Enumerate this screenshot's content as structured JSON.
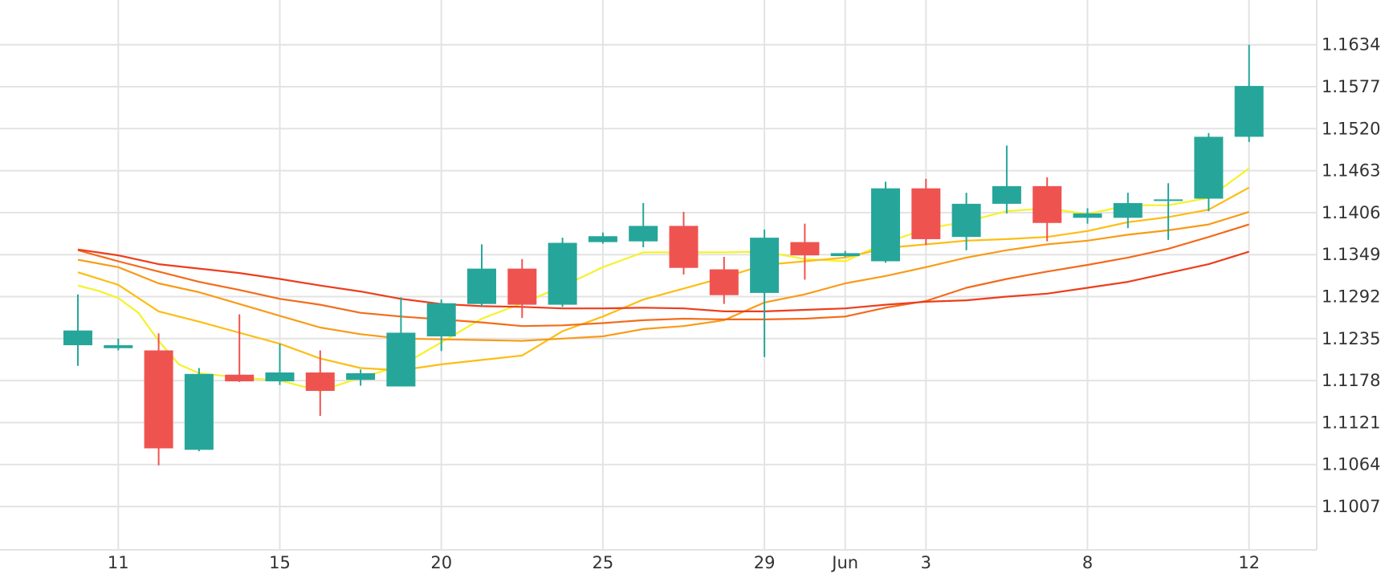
{
  "chart_data": {
    "type": "candlestick",
    "title": "",
    "xlabel": "",
    "ylabel": "",
    "ylim": [
      1.095,
      1.1705
    ],
    "y_ticks": [
      "1.1634",
      "1.1577",
      "1.1520",
      "1.1463",
      "1.1406",
      "1.1349",
      "1.1292",
      "1.1235",
      "1.1178",
      "1.1121",
      "1.1064",
      "1.1007"
    ],
    "x_ticks": [
      {
        "index": 1,
        "label": "11"
      },
      {
        "index": 5,
        "label": "15"
      },
      {
        "index": 9,
        "label": "20"
      },
      {
        "index": 13,
        "label": "25"
      },
      {
        "index": 17,
        "label": "29"
      },
      {
        "index": 19,
        "label": "Jun"
      },
      {
        "index": 21,
        "label": "3"
      },
      {
        "index": 25,
        "label": "8"
      },
      {
        "index": 29,
        "label": "12"
      }
    ],
    "grid": true,
    "colors": {
      "up": "#26a69a",
      "down": "#ef5350",
      "grid": "#e3e3e3",
      "text": "#333333"
    },
    "candles": [
      {
        "index": 0,
        "open": 1.1226,
        "high": 1.1295,
        "low": 1.1198,
        "close": 1.1246
      },
      {
        "index": 1,
        "open": 1.1222,
        "high": 1.1235,
        "low": 1.1219,
        "close": 1.1226
      },
      {
        "index": 2,
        "open": 1.1219,
        "high": 1.1242,
        "low": 1.1063,
        "close": 1.1086
      },
      {
        "index": 3,
        "open": 1.1084,
        "high": 1.1195,
        "low": 1.1082,
        "close": 1.1187
      },
      {
        "index": 4,
        "open": 1.1186,
        "high": 1.1268,
        "low": 1.1176,
        "close": 1.1177
      },
      {
        "index": 5,
        "open": 1.1177,
        "high": 1.1228,
        "low": 1.1172,
        "close": 1.1189
      },
      {
        "index": 6,
        "open": 1.1189,
        "high": 1.1219,
        "low": 1.113,
        "close": 1.1164
      },
      {
        "index": 7,
        "open": 1.1179,
        "high": 1.1193,
        "low": 1.1171,
        "close": 1.1188
      },
      {
        "index": 8,
        "open": 1.117,
        "high": 1.1291,
        "low": 1.117,
        "close": 1.1243
      },
      {
        "index": 9,
        "open": 1.1238,
        "high": 1.1288,
        "low": 1.1218,
        "close": 1.1283
      },
      {
        "index": 10,
        "open": 1.1282,
        "high": 1.1363,
        "low": 1.1279,
        "close": 1.133
      },
      {
        "index": 11,
        "open": 1.133,
        "high": 1.1343,
        "low": 1.1263,
        "close": 1.1281
      },
      {
        "index": 12,
        "open": 1.1281,
        "high": 1.1372,
        "low": 1.1278,
        "close": 1.1365
      },
      {
        "index": 13,
        "open": 1.1366,
        "high": 1.1379,
        "low": 1.1364,
        "close": 1.1374
      },
      {
        "index": 14,
        "open": 1.1367,
        "high": 1.1419,
        "low": 1.1359,
        "close": 1.1388
      },
      {
        "index": 15,
        "open": 1.1388,
        "high": 1.1407,
        "low": 1.1322,
        "close": 1.1331
      },
      {
        "index": 16,
        "open": 1.1329,
        "high": 1.1346,
        "low": 1.1282,
        "close": 1.1294
      },
      {
        "index": 17,
        "open": 1.1297,
        "high": 1.1383,
        "low": 1.121,
        "close": 1.1372
      },
      {
        "index": 18,
        "open": 1.1366,
        "high": 1.1391,
        "low": 1.1315,
        "close": 1.1348
      },
      {
        "index": 19,
        "open": 1.1347,
        "high": 1.1354,
        "low": 1.1346,
        "close": 1.1351
      },
      {
        "index": 20,
        "open": 1.134,
        "high": 1.1448,
        "low": 1.1338,
        "close": 1.1439
      },
      {
        "index": 21,
        "open": 1.1439,
        "high": 1.1452,
        "low": 1.1362,
        "close": 1.137
      },
      {
        "index": 22,
        "open": 1.1373,
        "high": 1.1433,
        "low": 1.1355,
        "close": 1.1418
      },
      {
        "index": 23,
        "open": 1.1418,
        "high": 1.1497,
        "low": 1.1405,
        "close": 1.1442
      },
      {
        "index": 24,
        "open": 1.1442,
        "high": 1.1454,
        "low": 1.1367,
        "close": 1.1392
      },
      {
        "index": 25,
        "open": 1.1399,
        "high": 1.1412,
        "low": 1.1391,
        "close": 1.1405
      },
      {
        "index": 26,
        "open": 1.1399,
        "high": 1.1433,
        "low": 1.1385,
        "close": 1.1419
      },
      {
        "index": 27,
        "open": 1.1422,
        "high": 1.1446,
        "low": 1.1369,
        "close": 1.1424
      },
      {
        "index": 28,
        "open": 1.1425,
        "high": 1.1514,
        "low": 1.1408,
        "close": 1.1509
      },
      {
        "index": 29,
        "open": 1.1509,
        "high": 1.1634,
        "low": 1.1502,
        "close": 1.1578
      }
    ],
    "series": [
      {
        "color": "#f5f22a",
        "points": [
          [
            0,
            1.1307
          ],
          [
            0.5,
            1.13
          ],
          [
            1,
            1.129
          ],
          [
            1.5,
            1.127
          ],
          [
            2,
            1.1232
          ],
          [
            2.5,
            1.12
          ],
          [
            3,
            1.1188
          ],
          [
            4,
            1.1182
          ],
          [
            5,
            1.1178
          ],
          [
            6,
            1.1164
          ],
          [
            7,
            1.1182
          ],
          [
            8,
            1.1198
          ],
          [
            9,
            1.123
          ],
          [
            10,
            1.1262
          ],
          [
            11,
            1.1283
          ],
          [
            12,
            1.1306
          ],
          [
            13,
            1.1332
          ],
          [
            14,
            1.1352
          ],
          [
            15,
            1.1352
          ],
          [
            16,
            1.1352
          ],
          [
            17,
            1.1353
          ],
          [
            18,
            1.1343
          ],
          [
            19,
            1.134
          ],
          [
            20,
            1.1365
          ],
          [
            21,
            1.1384
          ],
          [
            22,
            1.1394
          ],
          [
            23,
            1.1408
          ],
          [
            24,
            1.1412
          ],
          [
            25,
            1.1404
          ],
          [
            26,
            1.1416
          ],
          [
            27,
            1.1416
          ],
          [
            28,
            1.1426
          ],
          [
            29,
            1.1466
          ]
        ]
      },
      {
        "color": "#fdbd13",
        "points": [
          [
            0,
            1.1325
          ],
          [
            1,
            1.1308
          ],
          [
            2,
            1.1272
          ],
          [
            3,
            1.1258
          ],
          [
            4,
            1.1243
          ],
          [
            5,
            1.1228
          ],
          [
            6,
            1.1208
          ],
          [
            7,
            1.1195
          ],
          [
            8,
            1.1192
          ],
          [
            9,
            1.12
          ],
          [
            10,
            1.1206
          ],
          [
            11,
            1.1212
          ],
          [
            12,
            1.1245
          ],
          [
            13,
            1.1265
          ],
          [
            14,
            1.1288
          ],
          [
            15,
            1.1303
          ],
          [
            16,
            1.1318
          ],
          [
            17,
            1.1335
          ],
          [
            18,
            1.134
          ],
          [
            19,
            1.1345
          ],
          [
            20,
            1.1358
          ],
          [
            21,
            1.1363
          ],
          [
            22,
            1.1368
          ],
          [
            23,
            1.137
          ],
          [
            24,
            1.1373
          ],
          [
            25,
            1.1381
          ],
          [
            26,
            1.1393
          ],
          [
            27,
            1.14
          ],
          [
            28,
            1.141
          ],
          [
            29,
            1.144
          ]
        ]
      },
      {
        "color": "#f99b17",
        "points": [
          [
            0,
            1.1342
          ],
          [
            1,
            1.1332
          ],
          [
            2,
            1.131
          ],
          [
            3,
            1.1298
          ],
          [
            4,
            1.1282
          ],
          [
            5,
            1.1266
          ],
          [
            6,
            1.125
          ],
          [
            7,
            1.1241
          ],
          [
            8,
            1.1235
          ],
          [
            9,
            1.1234
          ],
          [
            10,
            1.1233
          ],
          [
            11,
            1.1232
          ],
          [
            12,
            1.1235
          ],
          [
            13,
            1.1238
          ],
          [
            14,
            1.1248
          ],
          [
            15,
            1.1252
          ],
          [
            16,
            1.126
          ],
          [
            17,
            1.1284
          ],
          [
            18,
            1.1295
          ],
          [
            19,
            1.131
          ],
          [
            20,
            1.132
          ],
          [
            21,
            1.1332
          ],
          [
            22,
            1.1345
          ],
          [
            23,
            1.1355
          ],
          [
            24,
            1.1363
          ],
          [
            25,
            1.1368
          ],
          [
            26,
            1.1376
          ],
          [
            27,
            1.1382
          ],
          [
            28,
            1.139
          ],
          [
            29,
            1.1407
          ]
        ]
      },
      {
        "color": "#f36b1c",
        "points": [
          [
            0,
            1.1355
          ],
          [
            1,
            1.134
          ],
          [
            2,
            1.1326
          ],
          [
            3,
            1.1312
          ],
          [
            4,
            1.1301
          ],
          [
            5,
            1.1289
          ],
          [
            6,
            1.1281
          ],
          [
            7,
            1.127
          ],
          [
            8,
            1.1265
          ],
          [
            9,
            1.1261
          ],
          [
            10,
            1.1257
          ],
          [
            11,
            1.1252
          ],
          [
            12,
            1.1253
          ],
          [
            13,
            1.1256
          ],
          [
            14,
            1.126
          ],
          [
            15,
            1.1262
          ],
          [
            16,
            1.1261
          ],
          [
            17,
            1.1261
          ],
          [
            18,
            1.1262
          ],
          [
            19,
            1.1265
          ],
          [
            20,
            1.1277
          ],
          [
            21,
            1.1286
          ],
          [
            22,
            1.1304
          ],
          [
            23,
            1.1316
          ],
          [
            24,
            1.1326
          ],
          [
            25,
            1.1335
          ],
          [
            26,
            1.1345
          ],
          [
            27,
            1.1357
          ],
          [
            28,
            1.1373
          ],
          [
            29,
            1.139
          ]
        ]
      },
      {
        "color": "#ed3d1c",
        "points": [
          [
            0,
            1.1356
          ],
          [
            1,
            1.1348
          ],
          [
            2,
            1.1336
          ],
          [
            3,
            1.133
          ],
          [
            4,
            1.1324
          ],
          [
            5,
            1.1316
          ],
          [
            6,
            1.1307
          ],
          [
            7,
            1.1299
          ],
          [
            8,
            1.1289
          ],
          [
            9,
            1.1282
          ],
          [
            10,
            1.1279
          ],
          [
            11,
            1.1278
          ],
          [
            12,
            1.1276
          ],
          [
            13,
            1.1276
          ],
          [
            14,
            1.1277
          ],
          [
            15,
            1.1276
          ],
          [
            16,
            1.1272
          ],
          [
            17,
            1.1272
          ],
          [
            18,
            1.1274
          ],
          [
            19,
            1.1276
          ],
          [
            20,
            1.1281
          ],
          [
            21,
            1.1285
          ],
          [
            22,
            1.1287
          ],
          [
            23,
            1.1292
          ],
          [
            24,
            1.1296
          ],
          [
            25,
            1.1304
          ],
          [
            26,
            1.1312
          ],
          [
            27,
            1.1324
          ],
          [
            28,
            1.1336
          ],
          [
            29,
            1.1353
          ]
        ]
      }
    ]
  }
}
